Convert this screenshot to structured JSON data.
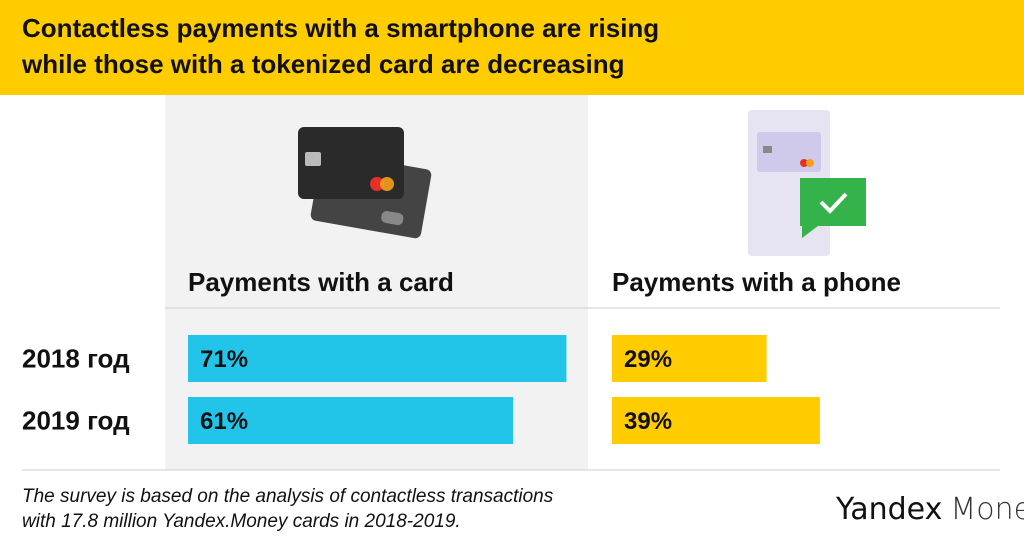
{
  "chart_data": {
    "type": "bar",
    "title": [
      "Contactless payments with a smartphone are rising",
      "while those with a tokenized card are decreasing"
    ],
    "categories": [
      "2018 год",
      "2019 год"
    ],
    "series": [
      {
        "name": "Payments with a card",
        "color": "#22c5e9",
        "values": [
          71,
          61
        ],
        "value_labels": [
          "71%",
          "61%"
        ]
      },
      {
        "name": "Payments with a phone",
        "color": "#ffcc00",
        "values": [
          29,
          39
        ],
        "value_labels": [
          "29%",
          "39%"
        ]
      }
    ],
    "note": [
      "The survey is based on the analysis of contactless transactions",
      "with  17.8 million Yandex.Money cards in 2018-2019."
    ],
    "logo": [
      "Yandex",
      "Money"
    ]
  }
}
